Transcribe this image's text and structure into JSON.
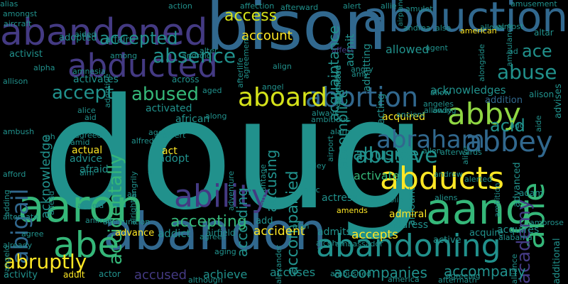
{
  "background": "#000000",
  "words": [
    {
      "text": "doug",
      "color": "#21918c",
      "rot": 0
    },
    {
      "text": "bison",
      "color": "#31688e",
      "rot": 0
    },
    {
      "text": "abduction",
      "color": "#31688e",
      "rot": 0
    },
    {
      "text": "abandoned",
      "color": "#443a83",
      "rot": 0
    },
    {
      "text": "abandon",
      "color": "#31688e",
      "rot": 0
    },
    {
      "text": "aaron",
      "color": "#35b779",
      "rot": 0
    },
    {
      "text": "aang",
      "color": "#35b779",
      "rot": 0
    },
    {
      "text": "abducted",
      "color": "#443a83",
      "rot": 0
    },
    {
      "text": "abigail",
      "color": "#31688e",
      "rot": -90
    },
    {
      "text": "abandoning",
      "color": "#21918c",
      "rot": 0
    },
    {
      "text": "ability",
      "color": "#443a83",
      "rot": 0
    },
    {
      "text": "abducts",
      "color": "#fde725",
      "rot": 0
    },
    {
      "text": "able",
      "color": "#35b779",
      "rot": -90
    },
    {
      "text": "abby",
      "color": "#90d743",
      "rot": 0
    },
    {
      "text": "abbey",
      "color": "#31688e",
      "rot": 0
    },
    {
      "text": "abraham",
      "color": "#31688e",
      "rot": 0
    },
    {
      "text": "abortion",
      "color": "#31688e",
      "rot": 0
    },
    {
      "text": "aboard",
      "color": "#d5e21a",
      "rot": 0
    },
    {
      "text": "abe",
      "color": "#35b779",
      "rot": 0
    },
    {
      "text": "absence",
      "color": "#21918c",
      "rot": 0
    },
    {
      "text": "accepted",
      "color": "#21918c",
      "rot": 0
    },
    {
      "text": "accept",
      "color": "#21918c",
      "rot": 0
    },
    {
      "text": "abused",
      "color": "#35b779",
      "rot": 0
    },
    {
      "text": "abusive",
      "color": "#21918c",
      "rot": 0
    },
    {
      "text": "abruptly",
      "color": "#fde725",
      "rot": 0
    },
    {
      "text": "academy",
      "color": "#443a83",
      "rot": -90
    },
    {
      "text": "abuse",
      "color": "#21918c",
      "rot": 0
    },
    {
      "text": "ace",
      "color": "#21918c",
      "rot": 0
    },
    {
      "text": "acid",
      "color": "#21918c",
      "rot": 0
    },
    {
      "text": "acknowledge",
      "color": "#21918c",
      "rot": -90
    },
    {
      "text": "accidentally",
      "color": "#35b779",
      "rot": -90
    },
    {
      "text": "accompanied",
      "color": "#21918c",
      "rot": -90
    },
    {
      "text": "accusing",
      "color": "#21918c",
      "rot": -90
    },
    {
      "text": "according",
      "color": "#21918c",
      "rot": -90
    },
    {
      "text": "access",
      "color": "#d5e21a",
      "rot": 0
    },
    {
      "text": "account",
      "color": "#fde725",
      "rot": 0
    },
    {
      "text": "accomplice",
      "color": "#21918c",
      "rot": -90
    },
    {
      "text": "acquaintance",
      "color": "#21918c",
      "rot": -90
    },
    {
      "text": "admitted",
      "color": "#21918c",
      "rot": -90
    },
    {
      "text": "admit",
      "color": "#21918c",
      "rot": -90
    },
    {
      "text": "admitting",
      "color": "#21918c",
      "rot": -90
    },
    {
      "text": "abusive",
      "color": "#21918c",
      "rot": 0
    },
    {
      "text": "activate",
      "color": "#35b779",
      "rot": 0
    },
    {
      "text": "acquired",
      "color": "#fde725",
      "rot": 0
    },
    {
      "text": "acting",
      "color": "#21918c",
      "rot": -90
    },
    {
      "text": "acknowledges",
      "color": "#21918c",
      "rot": 0
    },
    {
      "text": "addition",
      "color": "#31688e",
      "rot": 0
    },
    {
      "text": "advises",
      "color": "#21918c",
      "rot": -90
    },
    {
      "text": "altar",
      "color": "#21918c",
      "rot": 0
    },
    {
      "text": "allows",
      "color": "#21918c",
      "rot": 0
    },
    {
      "text": "alison",
      "color": "#21918c",
      "rot": 0
    },
    {
      "text": "advanced",
      "color": "#21918c",
      "rot": -90
    },
    {
      "text": "additional",
      "color": "#21918c",
      "rot": -90
    },
    {
      "text": "adam",
      "color": "#21918c",
      "rot": 0
    },
    {
      "text": "amount",
      "color": "#21918c",
      "rot": -90
    },
    {
      "text": "actress",
      "color": "#21918c",
      "rot": 0
    },
    {
      "text": "admiral",
      "color": "#fde725",
      "rot": 0
    },
    {
      "text": "acquire",
      "color": "#21918c",
      "rot": 0
    },
    {
      "text": "acquires",
      "color": "#21918c",
      "rot": 0
    },
    {
      "text": "address",
      "color": "#21918c",
      "rot": 0
    },
    {
      "text": "accepts",
      "color": "#fde725",
      "rot": 0
    },
    {
      "text": "accident",
      "color": "#fde725",
      "rot": 0
    },
    {
      "text": "admits",
      "color": "#21918c",
      "rot": 0
    },
    {
      "text": "active",
      "color": "#21918c",
      "rot": 0
    },
    {
      "text": "accepting",
      "color": "#35b779",
      "rot": 0
    },
    {
      "text": "advance",
      "color": "#fde725",
      "rot": 0
    },
    {
      "text": "addict",
      "color": "#21918c",
      "rot": 0
    },
    {
      "text": "airfield",
      "color": "#21918c",
      "rot": 0
    },
    {
      "text": "accompanies",
      "color": "#21918c",
      "rot": 0
    },
    {
      "text": "accompany",
      "color": "#21918c",
      "rot": 0
    },
    {
      "text": "accuses",
      "color": "#21918c",
      "rot": 0
    },
    {
      "text": "achieve",
      "color": "#21918c",
      "rot": 0
    },
    {
      "text": "accused",
      "color": "#443a83",
      "rot": 0
    },
    {
      "text": "actor",
      "color": "#21918c",
      "rot": 0
    },
    {
      "text": "activity",
      "color": "#21918c",
      "rot": 0
    },
    {
      "text": "adult",
      "color": "#fde725",
      "rot": 0
    },
    {
      "text": "activist",
      "color": "#21918c",
      "rot": 0
    },
    {
      "text": "adopted",
      "color": "#21918c",
      "rot": 0
    },
    {
      "text": "affair",
      "color": "#21918c",
      "rot": 0
    },
    {
      "text": "activates",
      "color": "#21918c",
      "rot": 0
    },
    {
      "text": "activated",
      "color": "#21918c",
      "rot": 0
    },
    {
      "text": "across",
      "color": "#21918c",
      "rot": 0
    },
    {
      "text": "african",
      "color": "#21918c",
      "rot": 0
    },
    {
      "text": "adopt",
      "color": "#21918c",
      "rot": 0
    },
    {
      "text": "act",
      "color": "#fde725",
      "rot": 0
    },
    {
      "text": "actual",
      "color": "#fde725",
      "rot": 0
    },
    {
      "text": "advice",
      "color": "#21918c",
      "rot": 0
    },
    {
      "text": "afraid",
      "color": "#21918c",
      "rot": 0
    },
    {
      "text": "adventure",
      "color": "#21918c",
      "rot": -90
    },
    {
      "text": "advantage",
      "color": "#21918c",
      "rot": -90
    },
    {
      "text": "add",
      "color": "#21918c",
      "rot": 0
    },
    {
      "text": "action",
      "color": "#21918c",
      "rot": 0
    },
    {
      "text": "affection",
      "color": "#21918c",
      "rot": 0
    },
    {
      "text": "afterward",
      "color": "#21918c",
      "rot": 0
    },
    {
      "text": "alert",
      "color": "#21918c",
      "rot": 0
    },
    {
      "text": "allie",
      "color": "#21918c",
      "rot": 0
    },
    {
      "text": "amulet",
      "color": "#21918c",
      "rot": 0
    },
    {
      "text": "airplane",
      "color": "#21918c",
      "rot": -90
    },
    {
      "text": "affect",
      "color": "#443a83",
      "rot": 0
    },
    {
      "text": "allowed",
      "color": "#21918c",
      "rot": 0
    },
    {
      "text": "andrea",
      "color": "#21918c",
      "rot": 0
    },
    {
      "text": "also",
      "color": "#21918c",
      "rot": 0
    },
    {
      "text": "american",
      "color": "#fde725",
      "rot": 0
    },
    {
      "text": "amusement",
      "color": "#21918c",
      "rot": 0
    },
    {
      "text": "almost",
      "color": "#21918c",
      "rot": 0
    },
    {
      "text": "agent",
      "color": "#21918c",
      "rot": 0
    },
    {
      "text": "angry",
      "color": "#21918c",
      "rot": 0
    },
    {
      "text": "amy",
      "color": "#21918c",
      "rot": 0
    },
    {
      "text": "aggressive",
      "color": "#21918c",
      "rot": -90
    },
    {
      "text": "alley",
      "color": "#21918c",
      "rot": 0
    },
    {
      "text": "alarm",
      "color": "#21918c",
      "rot": 0
    },
    {
      "text": "airport",
      "color": "#21918c",
      "rot": -90
    },
    {
      "text": "alec",
      "color": "#21918c",
      "rot": 0
    },
    {
      "text": "amends",
      "color": "#fde725",
      "rot": 0
    },
    {
      "text": "alan",
      "color": "#21918c",
      "rot": 0
    },
    {
      "text": "alcohol",
      "color": "#21918c",
      "rot": 0
    },
    {
      "text": "ambassador",
      "color": "#21918c",
      "rot": 0
    },
    {
      "text": "ambushed",
      "color": "#21918c",
      "rot": 0
    },
    {
      "text": "america",
      "color": "#21918c",
      "rot": 0
    },
    {
      "text": "alexander",
      "color": "#21918c",
      "rot": -90
    },
    {
      "text": "although",
      "color": "#21918c",
      "rot": 0
    },
    {
      "text": "aging",
      "color": "#21918c",
      "rot": 0
    },
    {
      "text": "agrees",
      "color": "#21918c",
      "rot": 0
    },
    {
      "text": "alias",
      "color": "#21918c",
      "rot": 0
    },
    {
      "text": "amongst",
      "color": "#21918c",
      "rot": 0
    },
    {
      "text": "aircraft",
      "color": "#21918c",
      "rot": 0
    },
    {
      "text": "aided",
      "color": "#21918c",
      "rot": 0
    },
    {
      "text": "among",
      "color": "#21918c",
      "rot": 0
    },
    {
      "text": "android",
      "color": "#21918c",
      "rot": 0
    },
    {
      "text": "alpha",
      "color": "#21918c",
      "rot": 0
    },
    {
      "text": "amnesia",
      "color": "#21918c",
      "rot": 0
    },
    {
      "text": "adoptive",
      "color": "#21918c",
      "rot": -90
    },
    {
      "text": "allison",
      "color": "#21918c",
      "rot": 0
    },
    {
      "text": "ambush",
      "color": "#21918c",
      "rot": 0
    },
    {
      "text": "alice",
      "color": "#21918c",
      "rot": 0
    },
    {
      "text": "aid",
      "color": "#21918c",
      "rot": 0
    },
    {
      "text": "along",
      "color": "#21918c",
      "rot": 0
    },
    {
      "text": "aged",
      "color": "#21918c",
      "rot": 0
    },
    {
      "text": "alter",
      "color": "#21918c",
      "rot": 0
    },
    {
      "text": "afterlife",
      "color": "#21918c",
      "rot": -90
    },
    {
      "text": "agreement",
      "color": "#21918c",
      "rot": -90
    },
    {
      "text": "align",
      "color": "#21918c",
      "rot": 0
    },
    {
      "text": "angel",
      "color": "#21918c",
      "rot": 0
    },
    {
      "text": "agreed",
      "color": "#21918c",
      "rot": 0
    },
    {
      "text": "amid",
      "color": "#21918c",
      "rot": 0
    },
    {
      "text": "aim",
      "color": "#21918c",
      "rot": 0
    },
    {
      "text": "agency",
      "color": "#21918c",
      "rot": 0
    },
    {
      "text": "albert",
      "color": "#21918c",
      "rot": 0
    },
    {
      "text": "al",
      "color": "#21918c",
      "rot": 0
    },
    {
      "text": "angrily",
      "color": "#21918c",
      "rot": -90
    },
    {
      "text": "alfred",
      "color": "#21918c",
      "rot": 0
    },
    {
      "text": "ali",
      "color": "#21918c",
      "rot": 0
    },
    {
      "text": "alright",
      "color": "#21918c",
      "rot": -90
    },
    {
      "text": "angela",
      "color": "#21918c",
      "rot": 0
    },
    {
      "text": "animal",
      "color": "#21918c",
      "rot": 0
    },
    {
      "text": "ammunition",
      "color": "#21918c",
      "rot": 0
    },
    {
      "text": "ahead",
      "color": "#21918c",
      "rot": -90
    },
    {
      "text": "adding",
      "color": "#21918c",
      "rot": -90
    },
    {
      "text": "alternate",
      "color": "#21918c",
      "rot": 0
    },
    {
      "text": "agree",
      "color": "#21918c",
      "rot": 0
    },
    {
      "text": "already",
      "color": "#21918c",
      "rot": 0
    },
    {
      "text": "angelo",
      "color": "#21918c",
      "rot": -90
    },
    {
      "text": "ah",
      "color": "#21918c",
      "rot": 0
    },
    {
      "text": "afford",
      "color": "#21918c",
      "rot": 0
    },
    {
      "text": "angeles",
      "color": "#21918c",
      "rot": 0
    },
    {
      "text": "allow",
      "color": "#21918c",
      "rot": 0
    },
    {
      "text": "aide",
      "color": "#21918c",
      "rot": -90
    },
    {
      "text": "ago",
      "color": "#21918c",
      "rot": 0
    },
    {
      "text": "allowing",
      "color": "#21918c",
      "rot": 0
    },
    {
      "text": "andy",
      "color": "#21918c",
      "rot": 0
    },
    {
      "text": "always",
      "color": "#21918c",
      "rot": 0
    },
    {
      "text": "ancient",
      "color": "#21918c",
      "rot": 0
    },
    {
      "text": "ambitious",
      "color": "#21918c",
      "rot": 0
    },
    {
      "text": "allen",
      "color": "#21918c",
      "rot": 0
    },
    {
      "text": "afterwards",
      "color": "#21918c",
      "rot": 0
    },
    {
      "text": "alerted",
      "color": "#21918c",
      "rot": 0
    },
    {
      "text": "andrew",
      "color": "#21918c",
      "rot": 0
    },
    {
      "text": "aliens",
      "color": "#21918c",
      "rot": 0
    },
    {
      "text": "ambition",
      "color": "#21918c",
      "rot": -90
    },
    {
      "text": "alcoholic",
      "color": "#21918c",
      "rot": 0
    },
    {
      "text": "alabama",
      "color": "#21918c",
      "rot": 0
    },
    {
      "text": "ambrose",
      "color": "#21918c",
      "rot": 0
    },
    {
      "text": "agreeing",
      "color": "#21918c",
      "rot": 0
    },
    {
      "text": "aftermath",
      "color": "#21918c",
      "rot": 0
    },
    {
      "text": "alliance",
      "color": "#21918c",
      "rot": -90
    },
    {
      "text": "alive",
      "color": "#21918c",
      "rot": -90
    },
    {
      "text": "alongside",
      "color": "#21918c",
      "rot": -90
    },
    {
      "text": "ambulance",
      "color": "#21918c",
      "rot": -90
    },
    {
      "text": "ad",
      "color": "#21918c",
      "rot": 0
    }
  ]
}
